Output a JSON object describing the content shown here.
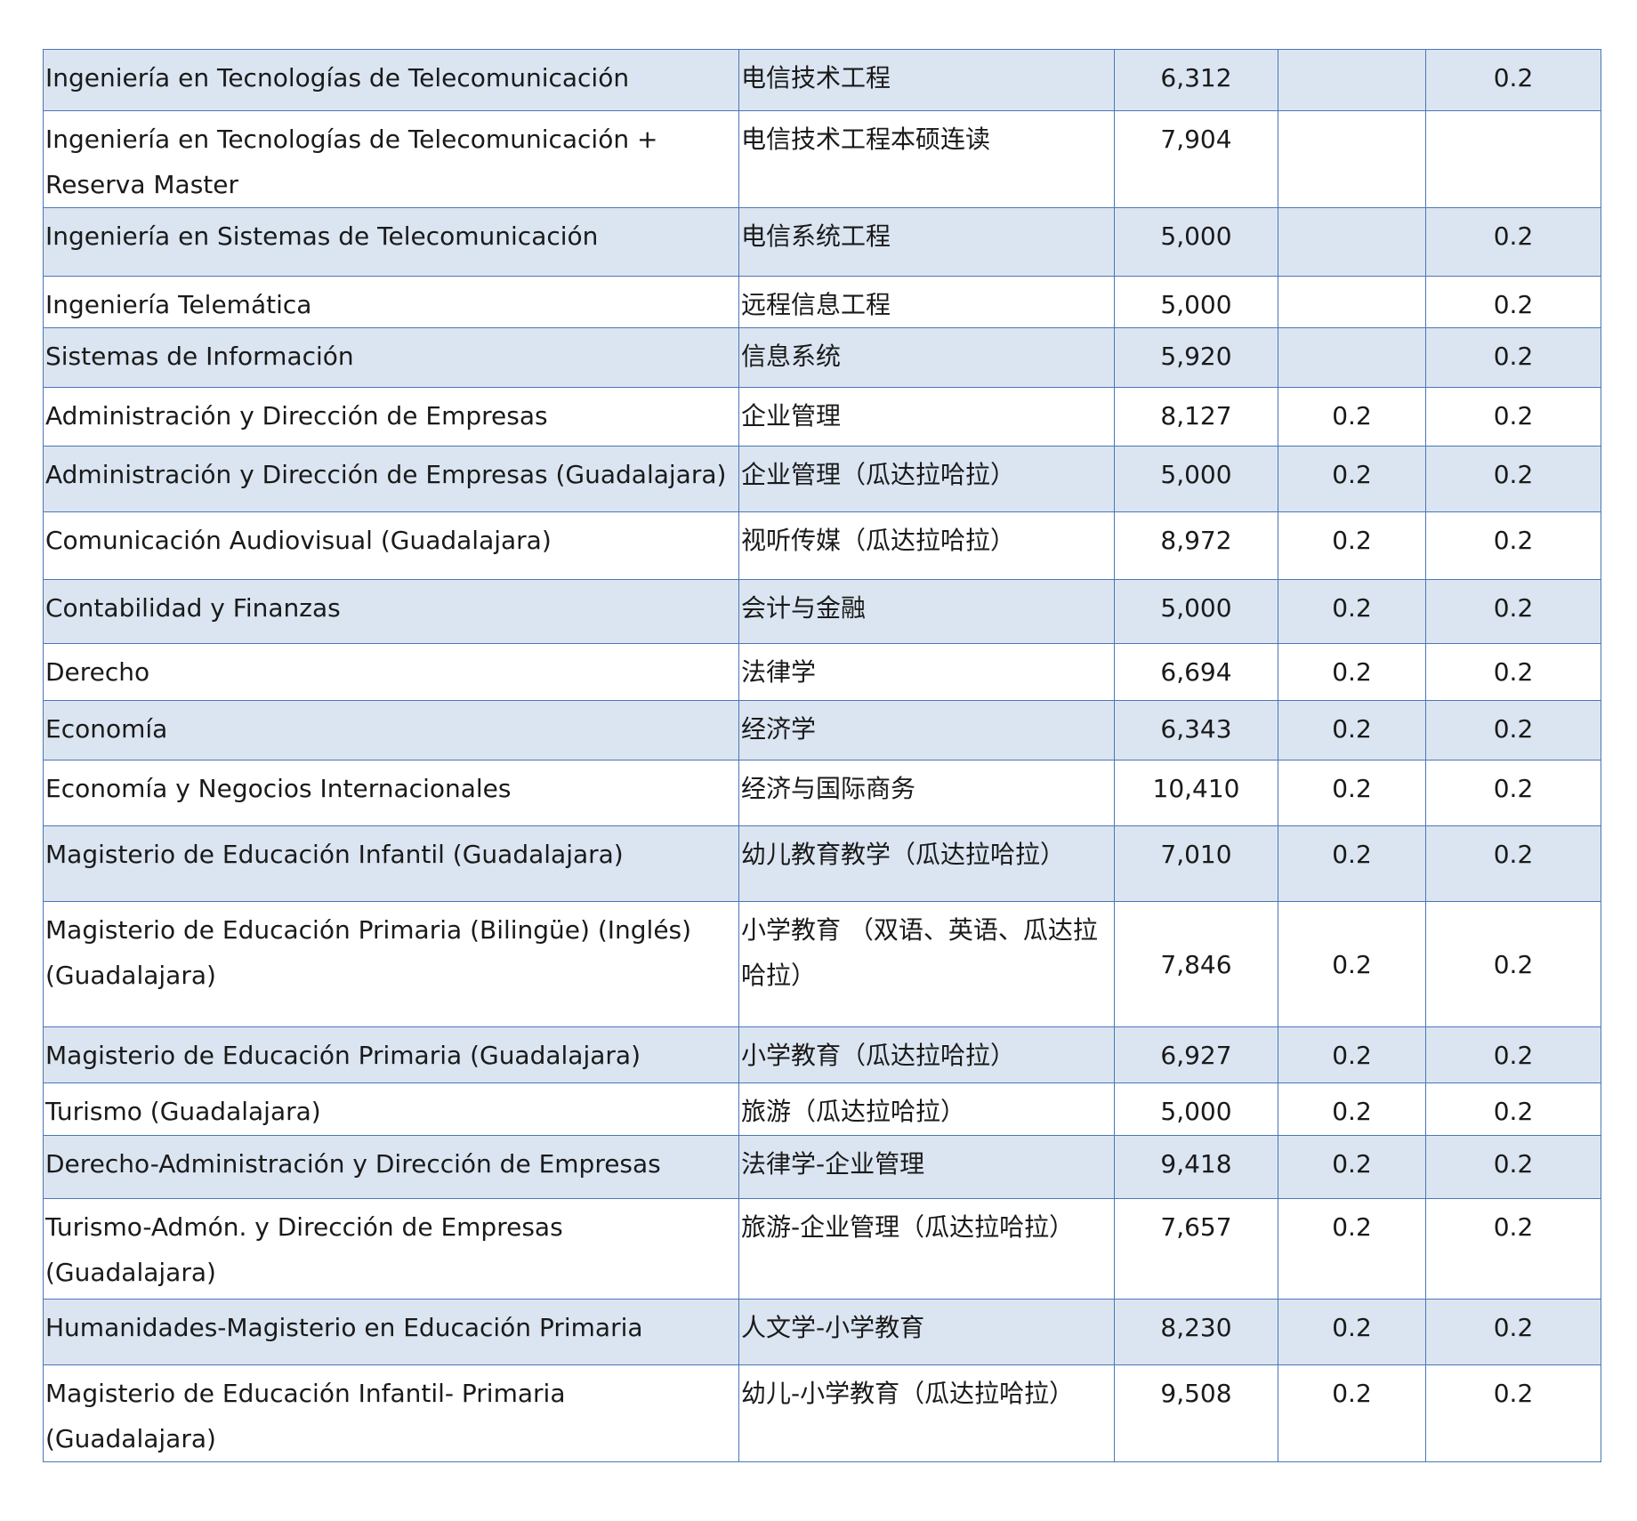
{
  "table": {
    "rows": [
      {
        "spanish": "Ingeniería en Tecnologías de Telecomunicación",
        "chinese": "电信技术工程",
        "fee": "6,312",
        "col4": "",
        "col5": "0.2"
      },
      {
        "spanish": "Ingeniería en Tecnologías de Telecomunicación + Reserva Master",
        "chinese": "电信技术工程本硕连读",
        "fee": "7,904",
        "col4": "",
        "col5": ""
      },
      {
        "spanish": "Ingeniería en Sistemas de Telecomunicación",
        "chinese": "电信系统工程",
        "fee": "5,000",
        "col4": "",
        "col5": "0.2"
      },
      {
        "spanish": "Ingeniería Telemática",
        "chinese": "远程信息工程",
        "fee": "5,000",
        "col4": "",
        "col5": "0.2"
      },
      {
        "spanish": "Sistemas de Información",
        "chinese": "信息系统",
        "fee": "5,920",
        "col4": "",
        "col5": "0.2"
      },
      {
        "spanish": "Administración y Dirección de Empresas",
        "chinese": "企业管理",
        "fee": "8,127",
        "col4": "0.2",
        "col5": "0.2"
      },
      {
        "spanish": "Administración y Dirección de Empresas (Guadalajara)",
        "chinese": "企业管理（瓜达拉哈拉）",
        "fee": "5,000",
        "col4": "0.2",
        "col5": "0.2"
      },
      {
        "spanish": "Comunicación Audiovisual (Guadalajara)",
        "chinese": "视听传媒（瓜达拉哈拉）",
        "fee": "8,972",
        "col4": "0.2",
        "col5": "0.2"
      },
      {
        "spanish": "Contabilidad y Finanzas",
        "chinese": "会计与金融",
        "fee": "5,000",
        "col4": "0.2",
        "col5": "0.2"
      },
      {
        "spanish": "Derecho",
        "chinese": "法律学",
        "fee": "6,694",
        "col4": "0.2",
        "col5": "0.2"
      },
      {
        "spanish": "Economía",
        "chinese": "经济学",
        "fee": "6,343",
        "col4": "0.2",
        "col5": "0.2"
      },
      {
        "spanish": "Economía y Negocios Internacionales",
        "chinese": "经济与国际商务",
        "fee": "10,410",
        "col4": "0.2",
        "col5": "0.2"
      },
      {
        "spanish": "Magisterio de Educación Infantil (Guadalajara)",
        "chinese": "幼儿教育教学（瓜达拉哈拉）",
        "fee": "7,010",
        "col4": "0.2",
        "col5": "0.2"
      },
      {
        "spanish": "Magisterio de Educación Primaria (Bilingüe) (Inglés) (Guadalajara)",
        "chinese": "小学教育 （双语、英语、瓜达拉哈拉）",
        "fee": "7,846",
        "col4": "0.2",
        "col5": "0.2"
      },
      {
        "spanish": "Magisterio de Educación Primaria (Guadalajara)",
        "chinese": "小学教育（瓜达拉哈拉）",
        "fee": "6,927",
        "col4": "0.2",
        "col5": "0.2"
      },
      {
        "spanish": "Turismo (Guadalajara)",
        "chinese": "旅游（瓜达拉哈拉）",
        "fee": "5,000",
        "col4": "0.2",
        "col5": "0.2"
      },
      {
        "spanish": "Derecho-Administración y Dirección de Empresas",
        "chinese": "法律学-企业管理",
        "fee": "9,418",
        "col4": "0.2",
        "col5": "0.2"
      },
      {
        "spanish": "Turismo-Admón. y Dirección de Empresas (Guadalajara)",
        "chinese": "旅游-企业管理（瓜达拉哈拉）",
        "fee": "7,657",
        "col4": "0.2",
        "col5": "0.2"
      },
      {
        "spanish": "Humanidades-Magisterio en Educación Primaria",
        "chinese": "人文学-小学教育",
        "fee": "8,230",
        "col4": "0.2",
        "col5": "0.2"
      },
      {
        "spanish": "Magisterio de Educación Infantil- Primaria (Guadalajara)",
        "chinese": "幼儿-小学教育（瓜达拉哈拉）",
        "fee": "9,508",
        "col4": "0.2",
        "col5": "0.2"
      }
    ]
  }
}
